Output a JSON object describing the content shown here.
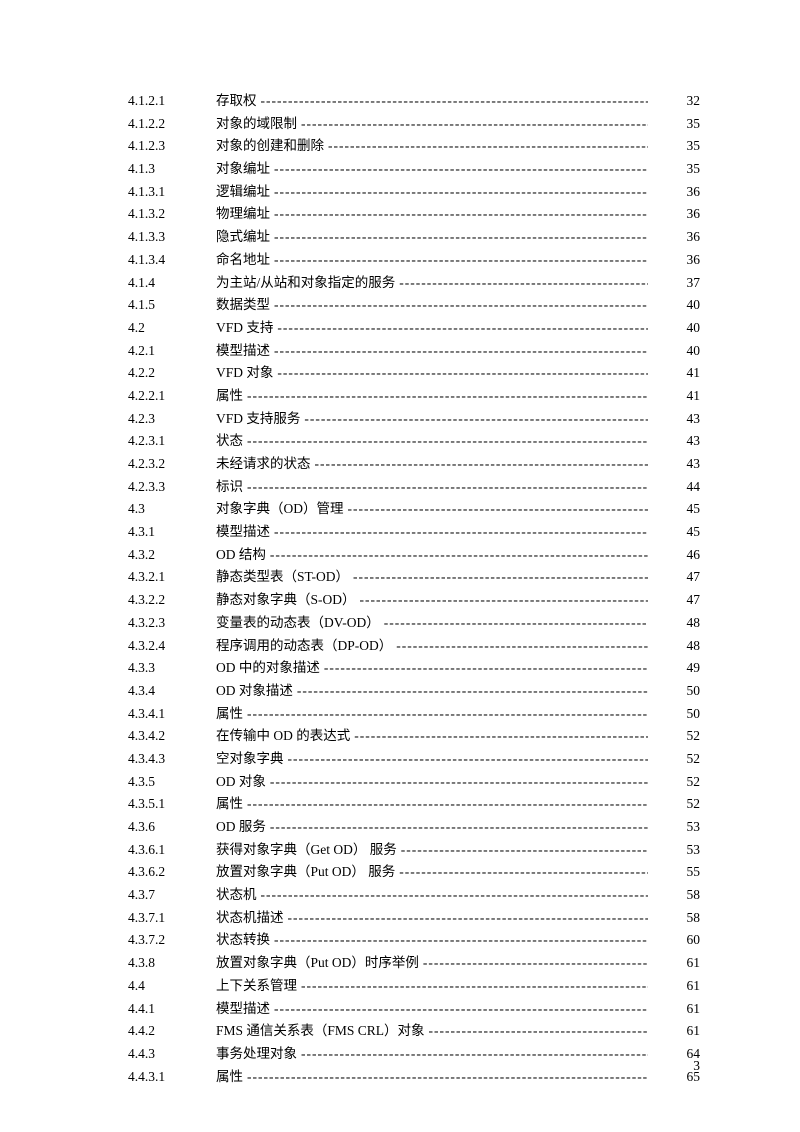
{
  "page_number": "3",
  "toc": [
    {
      "n": "4.1.2.1",
      "t": "存取权",
      "p": "32"
    },
    {
      "n": "4.1.2.2",
      "t": "对象的域限制",
      "p": "35"
    },
    {
      "n": "4.1.2.3",
      "t": "对象的创建和删除",
      "p": "35"
    },
    {
      "n": "4.1.3",
      "t": "对象编址",
      "p": "35"
    },
    {
      "n": "4.1.3.1",
      "t": "逻辑编址",
      "p": "36"
    },
    {
      "n": "4.1.3.2",
      "t": "物理编址",
      "p": "36"
    },
    {
      "n": "4.1.3.3",
      "t": "隐式编址",
      "p": "36"
    },
    {
      "n": "4.1.3.4",
      "t": "命名地址",
      "p": "36"
    },
    {
      "n": "4.1.4",
      "t": "为主站/从站和对象指定的服务",
      "p": "37"
    },
    {
      "n": "4.1.5",
      "t": "数据类型",
      "p": "40"
    },
    {
      "n": "4.2",
      "t": "VFD 支持",
      "p": "40"
    },
    {
      "n": "4.2.1",
      "t": "模型描述",
      "p": "40"
    },
    {
      "n": "4.2.2",
      "t": "VFD 对象",
      "p": "41"
    },
    {
      "n": "4.2.2.1",
      "t": "属性",
      "p": "41"
    },
    {
      "n": "4.2.3",
      "t": "VFD 支持服务",
      "p": "43"
    },
    {
      "n": "4.2.3.1",
      "t": "状态",
      "p": "43"
    },
    {
      "n": "4.2.3.2",
      "t": "未经请求的状态",
      "p": "43"
    },
    {
      "n": "4.2.3.3",
      "t": "标识",
      "p": "44"
    },
    {
      "n": "4.3",
      "t": "对象字典（OD）管理",
      "p": "45"
    },
    {
      "n": "4.3.1",
      "t": "模型描述",
      "p": "45"
    },
    {
      "n": "4.3.2",
      "t": "OD 结构",
      "p": "46"
    },
    {
      "n": "4.3.2.1",
      "t": "静态类型表（ST-OD）",
      "p": "47"
    },
    {
      "n": "4.3.2.2",
      "t": "静态对象字典（S-OD）",
      "p": "47"
    },
    {
      "n": "4.3.2.3",
      "t": "变量表的动态表（DV-OD）",
      "p": "48"
    },
    {
      "n": "4.3.2.4",
      "t": "程序调用的动态表（DP-OD）",
      "p": "48"
    },
    {
      "n": "4.3.3",
      "t": "OD 中的对象描述",
      "p": "49"
    },
    {
      "n": "4.3.4",
      "t": "OD 对象描述",
      "p": "50"
    },
    {
      "n": "4.3.4.1",
      "t": "属性",
      "p": "50"
    },
    {
      "n": "4.3.4.2",
      "t": "在传输中 OD 的表达式",
      "p": "52"
    },
    {
      "n": "4.3.4.3",
      "t": "空对象字典",
      "p": "52"
    },
    {
      "n": "4.3.5",
      "t": "OD 对象",
      "p": "52"
    },
    {
      "n": "4.3.5.1",
      "t": "属性",
      "p": "52"
    },
    {
      "n": "4.3.6",
      "t": "OD 服务",
      "p": "53"
    },
    {
      "n": "4.3.6.1",
      "t": "获得对象字典（Get OD）  服务",
      "p": "53"
    },
    {
      "n": "4.3.6.2",
      "t": "放置对象字典（Put OD）  服务",
      "p": "55"
    },
    {
      "n": "4.3.7",
      "t": "状态机",
      "p": "58"
    },
    {
      "n": "4.3.7.1",
      "t": "状态机描述",
      "p": "58"
    },
    {
      "n": "4.3.7.2",
      "t": "状态转换",
      "p": "60"
    },
    {
      "n": "4.3.8",
      "t": "放置对象字典（Put OD）时序举例",
      "p": "61"
    },
    {
      "n": "4.4",
      "t": "上下关系管理",
      "p": "61"
    },
    {
      "n": "4.4.1",
      "t": "模型描述",
      "p": "61"
    },
    {
      "n": "4.4.2",
      "t": "FMS 通信关系表（FMS CRL）对象",
      "p": "61"
    },
    {
      "n": "4.4.3",
      "t": "事务处理对象",
      "p": "64"
    },
    {
      "n": "4.4.3.1",
      "t": "属性",
      "p": "65"
    }
  ]
}
